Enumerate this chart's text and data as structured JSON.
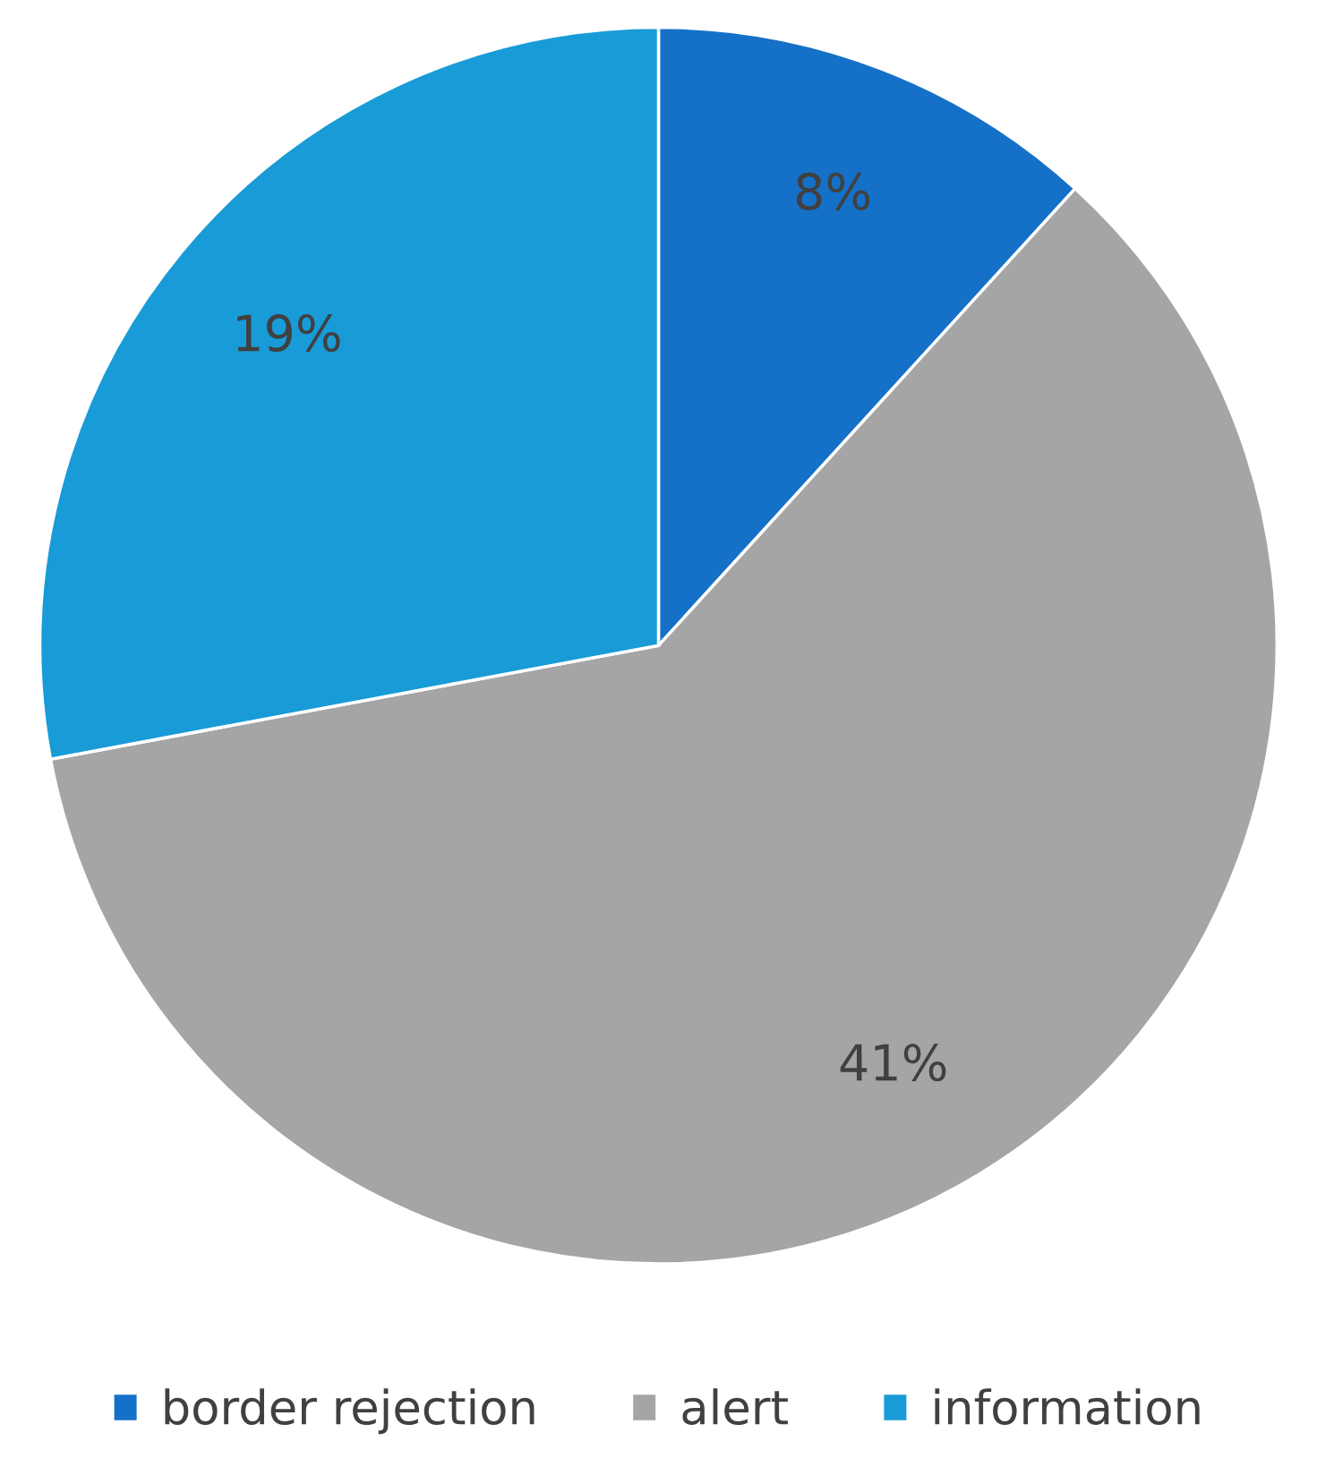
{
  "chart_data": {
    "type": "pie",
    "categories": [
      "border rejection",
      "alert",
      "information"
    ],
    "values": [
      8,
      41,
      19
    ],
    "value_labels": [
      "8%",
      "41%",
      "19%"
    ],
    "colors": [
      "#1570c8",
      "#a5a5a5",
      "#189bd7"
    ],
    "legend": "bottom"
  }
}
